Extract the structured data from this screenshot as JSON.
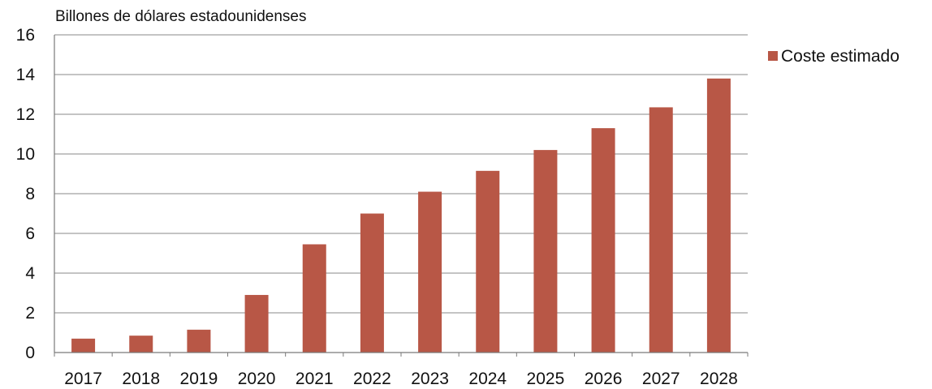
{
  "chart_data": {
    "type": "bar",
    "ylabel": "Billones de dólares estadounidenses",
    "categories": [
      "2017",
      "2018",
      "2019",
      "2020",
      "2021",
      "2022",
      "2023",
      "2024",
      "2025",
      "2026",
      "2027",
      "2028"
    ],
    "series": [
      {
        "name": "Coste estimado",
        "color": "#b85746",
        "values": [
          0.7,
          0.85,
          1.15,
          2.9,
          5.45,
          7.0,
          8.1,
          9.15,
          10.2,
          11.3,
          12.35,
          13.8
        ]
      }
    ],
    "ylim": [
      0,
      16
    ],
    "yticks": [
      "0",
      "2",
      "4",
      "6",
      "8",
      "10",
      "12",
      "14",
      "16"
    ],
    "grid": true,
    "legend_position": "top-right"
  }
}
